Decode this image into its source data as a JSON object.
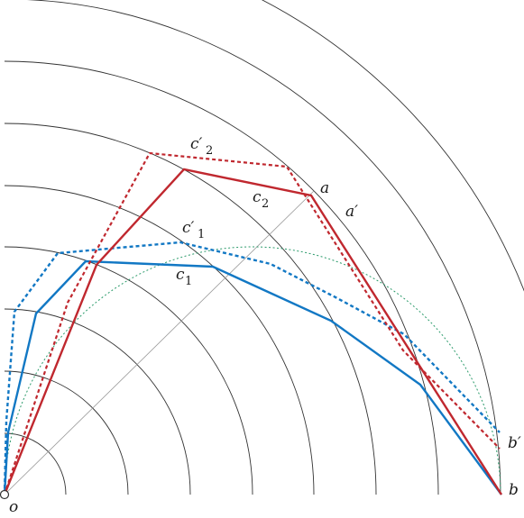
{
  "labels": {
    "o": "o",
    "a": "a",
    "a_prime": "a′",
    "b": "b",
    "b_prime": "b′",
    "c1": "c",
    "c1_sub": "1",
    "c1_prime": "c′",
    "c1_prime_sub": "1",
    "c2": "c",
    "c2_sub": "2",
    "c2_prime": "c′",
    "c2_prime_sub": "2"
  },
  "colors": {
    "red": "#c0282f",
    "blue": "#1278c4",
    "green": "#2a9a6a",
    "arc": "#333333",
    "radial": "#999999"
  }
}
